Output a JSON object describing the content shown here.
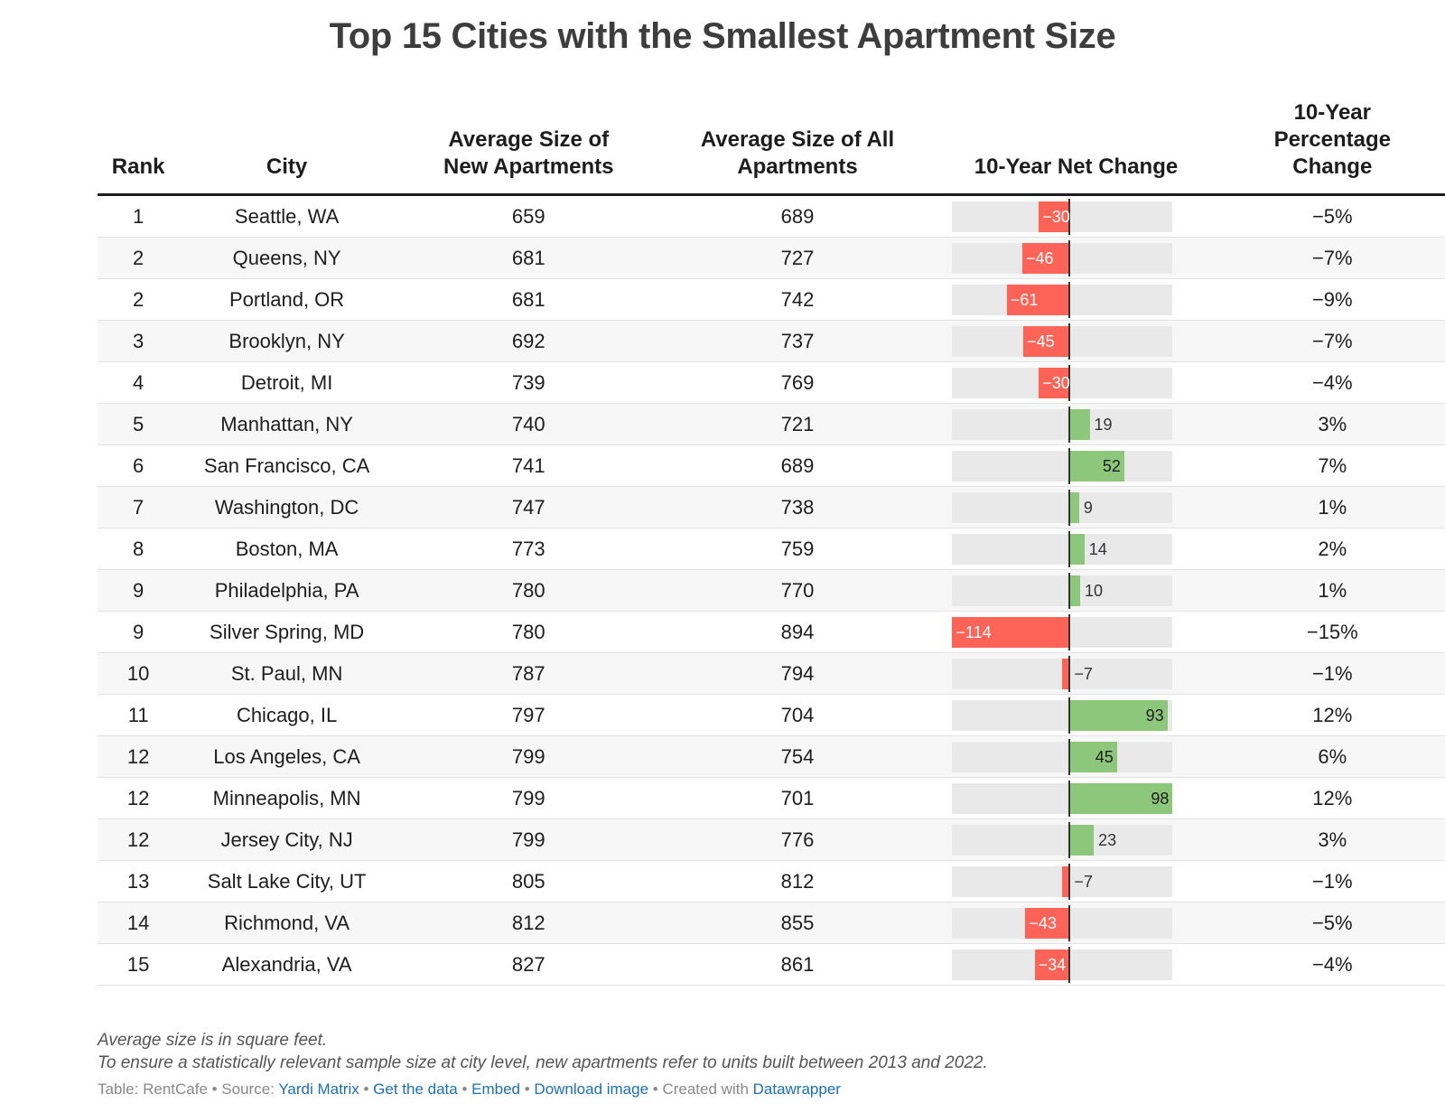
{
  "title": "Top 15 Cities with the Smallest Apartment Size",
  "headers": {
    "rank": "Rank",
    "city": "City",
    "new_line1": "Average Size of",
    "new_line2": "New Apartments",
    "all_line1": "Average Size of All",
    "all_line2": "Apartments",
    "net_change": "10-Year Net Change",
    "pct_line1": "10-Year",
    "pct_line2": "Percentage",
    "pct_line3": "Change"
  },
  "colors": {
    "negative": "#fd6457",
    "positive": "#8dc77c",
    "track": "#e9e9e9"
  },
  "chart_data": {
    "type": "table",
    "title": "Top 15 Cities with the Smallest Apartment Size",
    "xlim": [
      -114,
      98
    ],
    "rows": [
      {
        "rank": "1",
        "city": "Seattle, WA",
        "new_size": "659",
        "all_size": "689",
        "net_change": -30,
        "net_label": "−30",
        "pct": "−5%"
      },
      {
        "rank": "2",
        "city": "Queens, NY",
        "new_size": "681",
        "all_size": "727",
        "net_change": -46,
        "net_label": "−46",
        "pct": "−7%"
      },
      {
        "rank": "2",
        "city": "Portland, OR",
        "new_size": "681",
        "all_size": "742",
        "net_change": -61,
        "net_label": "−61",
        "pct": "−9%"
      },
      {
        "rank": "3",
        "city": "Brooklyn, NY",
        "new_size": "692",
        "all_size": "737",
        "net_change": -45,
        "net_label": "−45",
        "pct": "−7%"
      },
      {
        "rank": "4",
        "city": "Detroit, MI",
        "new_size": "739",
        "all_size": "769",
        "net_change": -30,
        "net_label": "−30",
        "pct": "−4%"
      },
      {
        "rank": "5",
        "city": "Manhattan, NY",
        "new_size": "740",
        "all_size": "721",
        "net_change": 19,
        "net_label": "19",
        "pct": "3%"
      },
      {
        "rank": "6",
        "city": "San Francisco, CA",
        "new_size": "741",
        "all_size": "689",
        "net_change": 52,
        "net_label": "52",
        "pct": "7%"
      },
      {
        "rank": "7",
        "city": "Washington, DC",
        "new_size": "747",
        "all_size": "738",
        "net_change": 9,
        "net_label": "9",
        "pct": "1%"
      },
      {
        "rank": "8",
        "city": "Boston, MA",
        "new_size": "773",
        "all_size": "759",
        "net_change": 14,
        "net_label": "14",
        "pct": "2%"
      },
      {
        "rank": "9",
        "city": "Philadelphia, PA",
        "new_size": "780",
        "all_size": "770",
        "net_change": 10,
        "net_label": "10",
        "pct": "1%"
      },
      {
        "rank": "9",
        "city": "Silver Spring, MD",
        "new_size": "780",
        "all_size": "894",
        "net_change": -114,
        "net_label": "−114",
        "pct": "−15%"
      },
      {
        "rank": "10",
        "city": "St. Paul, MN",
        "new_size": "787",
        "all_size": "794",
        "net_change": -7,
        "net_label": "−7",
        "pct": "−1%"
      },
      {
        "rank": "11",
        "city": "Chicago, IL",
        "new_size": "797",
        "all_size": "704",
        "net_change": 93,
        "net_label": "93",
        "pct": "12%"
      },
      {
        "rank": "12",
        "city": "Los Angeles, CA",
        "new_size": "799",
        "all_size": "754",
        "net_change": 45,
        "net_label": "45",
        "pct": "6%"
      },
      {
        "rank": "12",
        "city": "Minneapolis, MN",
        "new_size": "799",
        "all_size": "701",
        "net_change": 98,
        "net_label": "98",
        "pct": "12%"
      },
      {
        "rank": "12",
        "city": "Jersey City, NJ",
        "new_size": "799",
        "all_size": "776",
        "net_change": 23,
        "net_label": "23",
        "pct": "3%"
      },
      {
        "rank": "13",
        "city": "Salt Lake City, UT",
        "new_size": "805",
        "all_size": "812",
        "net_change": -7,
        "net_label": "−7",
        "pct": "−1%"
      },
      {
        "rank": "14",
        "city": "Richmond, VA",
        "new_size": "812",
        "all_size": "855",
        "net_change": -43,
        "net_label": "−43",
        "pct": "−5%"
      },
      {
        "rank": "15",
        "city": "Alexandria, VA",
        "new_size": "827",
        "all_size": "861",
        "net_change": -34,
        "net_label": "−34",
        "pct": "−4%"
      }
    ]
  },
  "notes": {
    "line1": "Average size is in square feet.",
    "line2": "To ensure a statistically relevant sample size at city level, new apartments refer to units built between 2013 and 2022."
  },
  "credits": {
    "prefix": "Table: RentCafe • Source: ",
    "source_link": "Yardi Matrix",
    "sep1": " • ",
    "get_data": "Get the data",
    "sep2": " • ",
    "embed": "Embed",
    "sep3": " • ",
    "download": "Download image",
    "created": " • Created with ",
    "datawrapper": "Datawrapper"
  }
}
